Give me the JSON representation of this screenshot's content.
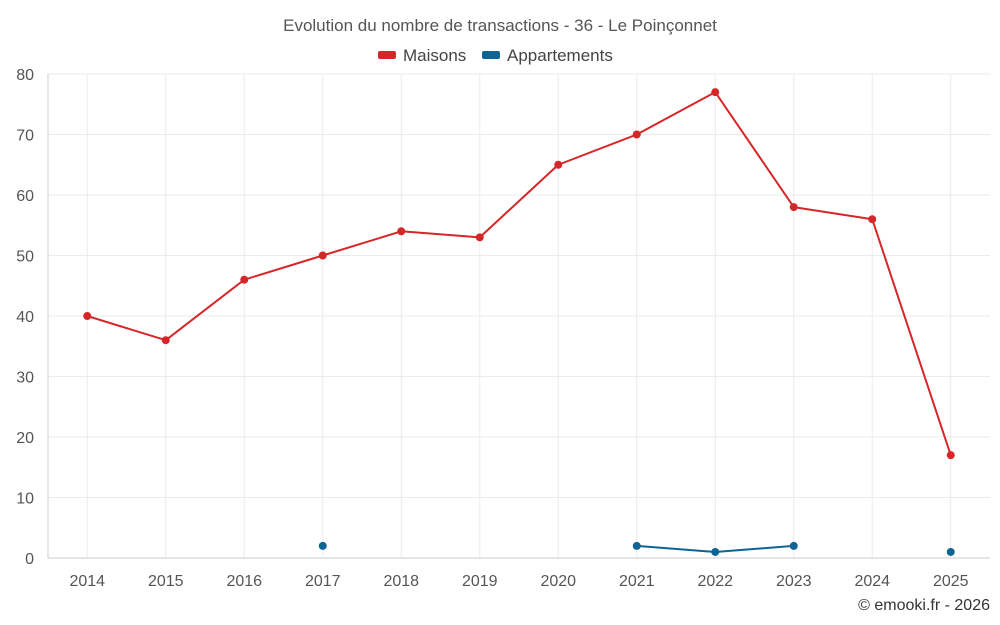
{
  "chart_data": {
    "type": "line",
    "title": "Evolution du nombre de transactions - 36 - Le Poinçonnet",
    "categories": [
      "2014",
      "2015",
      "2016",
      "2017",
      "2018",
      "2019",
      "2020",
      "2021",
      "2022",
      "2023",
      "2024",
      "2025"
    ],
    "ylim": [
      0,
      80
    ],
    "yticks": [
      0,
      10,
      20,
      30,
      40,
      50,
      60,
      70,
      80
    ],
    "grid": true,
    "legend_position": "top-center",
    "series": [
      {
        "name": "Maisons",
        "color": "#d62728",
        "values": [
          40,
          36,
          46,
          50,
          54,
          53,
          65,
          70,
          77,
          58,
          56,
          17
        ]
      },
      {
        "name": "Appartements",
        "color": "#0f6496",
        "values": [
          null,
          null,
          null,
          2,
          null,
          null,
          null,
          2,
          1,
          2,
          null,
          1
        ]
      }
    ]
  },
  "credit": "© emooki.fr - 2026"
}
